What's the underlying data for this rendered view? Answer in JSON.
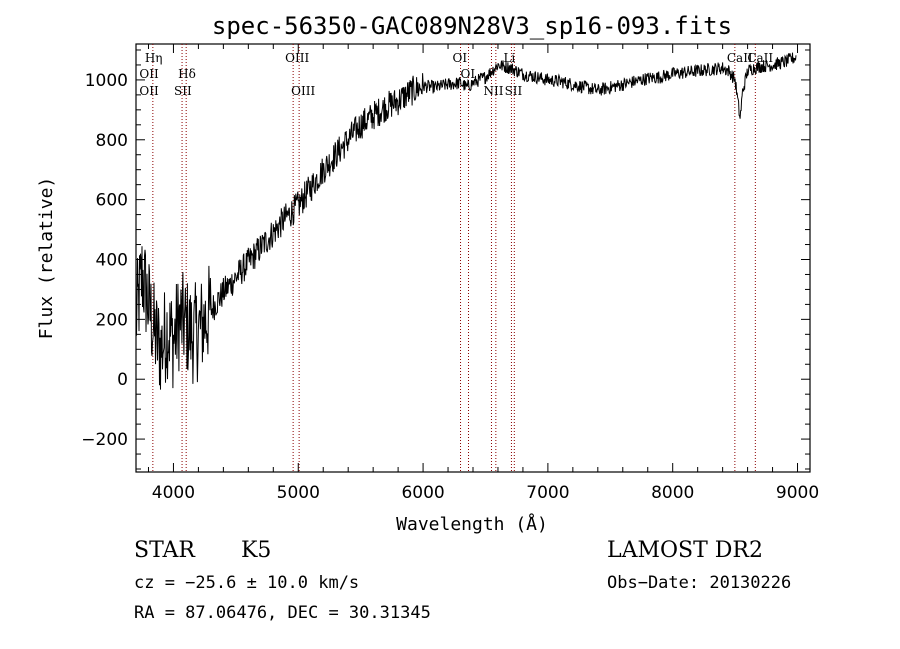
{
  "chart_data": {
    "type": "line",
    "title": "spec-56350-GAC089N28V3_sp16-093.fits",
    "xlabel": "Wavelength (Å)",
    "ylabel": "Flux (relative)",
    "xlim": [
      3700,
      9100
    ],
    "ylim": [
      -310,
      1120
    ],
    "xticks": [
      4000,
      5000,
      6000,
      7000,
      8000,
      9000
    ],
    "yticks": [
      -200,
      0,
      200,
      400,
      600,
      800,
      1000
    ],
    "grid": false,
    "line_color": "#000000",
    "marker_color": "#8b0000",
    "series": [
      {
        "x": [
          3700,
          3750,
          3800,
          3850,
          3900,
          3950,
          4000,
          4050,
          4100,
          4150,
          4200,
          4300,
          4400,
          4500,
          4600,
          4700,
          4800,
          4900,
          5000,
          5100,
          5200,
          5300,
          5400,
          5500,
          5600,
          5700,
          5800,
          5900,
          6000,
          6100,
          6200,
          6300,
          6350,
          6400,
          6500,
          6550,
          6600,
          6700,
          6800,
          6900,
          7000,
          7100,
          7200,
          7300,
          7400,
          7500,
          7600,
          7700,
          7800,
          7900,
          8000,
          8100,
          8200,
          8300,
          8400,
          8450,
          8500,
          8540,
          8560,
          8600,
          8650,
          8700,
          8800,
          8900,
          8950,
          8990
        ],
        "values": [
          200,
          350,
          250,
          150,
          100,
          170,
          130,
          200,
          180,
          150,
          160,
          230,
          290,
          340,
          390,
          440,
          490,
          540,
          580,
          640,
          700,
          750,
          800,
          850,
          880,
          910,
          930,
          960,
          980,
          975,
          985,
          990,
          975,
          990,
          1010,
          1030,
          1050,
          1040,
          1020,
          1010,
          1000,
          995,
          985,
          975,
          965,
          975,
          985,
          995,
          1005,
          1010,
          1020,
          1025,
          1030,
          1035,
          1040,
          1030,
          1000,
          870,
          960,
          1030,
          1040,
          1045,
          1050,
          1060,
          1070,
          1075
        ]
      }
    ],
    "line_markers": [
      {
        "label": "Hη",
        "x": 3835,
        "row": 1
      },
      {
        "label": "OII",
        "x": 3727,
        "row": 2
      },
      {
        "label": "OII",
        "x": 3727,
        "row": 3
      },
      {
        "label": "Hδ",
        "x": 4102,
        "row": 2
      },
      {
        "label": "SII",
        "x": 4069,
        "row": 3
      },
      {
        "label": "OIII",
        "x": 4959,
        "row": 1
      },
      {
        "label": "OIII",
        "x": 5007,
        "row": 3
      },
      {
        "label": "OI",
        "x": 6300,
        "row": 1
      },
      {
        "label": "OI",
        "x": 6364,
        "row": 2
      },
      {
        "label": "NII",
        "x": 6548,
        "row": 3
      },
      {
        "label": "Li",
        "x": 6708,
        "row": 1
      },
      {
        "label": "SII",
        "x": 6717,
        "row": 3
      },
      {
        "label": "CaII",
        "x": 8498,
        "row": 1
      },
      {
        "label": "CaII",
        "x": 8662,
        "row": 1
      }
    ],
    "marker_lines_x": [
      3835,
      4069,
      4102,
      4959,
      5007,
      6300,
      6364,
      6548,
      6583,
      6708,
      6731,
      8498,
      8662
    ]
  },
  "info": {
    "object_class": "STAR",
    "subclass": "K5",
    "survey": "LAMOST DR2",
    "redshift": "cz = −25.6 ± 10.0 km/s",
    "obs_date": "Obs−Date: 20130226",
    "coords": "RA =  87.06476, DEC =  30.31345"
  }
}
